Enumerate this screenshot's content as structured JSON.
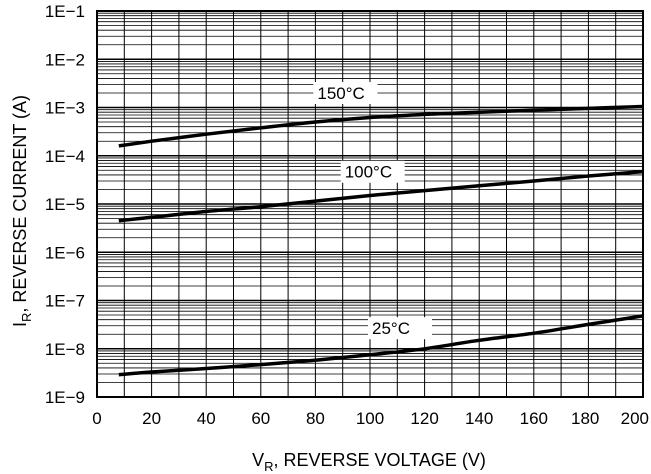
{
  "chart_data": {
    "type": "line",
    "xlabel": "V",
    "xlabel_sub": "R",
    "xlabel_rest": ", REVERSE VOLTAGE (V)",
    "ylabel": "I",
    "ylabel_sub": "R",
    "ylabel_rest": ", REVERSE CURRENT (A)",
    "xlim": [
      0,
      200
    ],
    "ylim": [
      1e-09,
      0.1
    ],
    "yscale": "log",
    "grid": true,
    "x_ticks": [
      0,
      20,
      40,
      60,
      80,
      100,
      120,
      140,
      160,
      180,
      200
    ],
    "x_tick_labels": [
      "0",
      "20",
      "40",
      "60",
      "80",
      "100",
      "120",
      "140",
      "160",
      "180",
      "200"
    ],
    "y_ticks": [
      1e-09,
      1e-08,
      1e-07,
      1e-06,
      1e-05,
      0.0001,
      0.001,
      0.01,
      0.1
    ],
    "y_tick_labels": [
      "1E−9",
      "1E−8",
      "1E−7",
      "1E−6",
      "1E−5",
      "1E−4",
      "1E−3",
      "1E−2",
      "1E−1"
    ],
    "series": [
      {
        "name": "150°C",
        "label_at": [
          80,
          0.0015
        ],
        "x": [
          8,
          20,
          40,
          60,
          80,
          100,
          120,
          140,
          160,
          180,
          200
        ],
        "y": [
          0.00016,
          0.0002,
          0.00028,
          0.00038,
          0.0005,
          0.00062,
          0.00072,
          0.0008,
          0.00088,
          0.00096,
          0.00105
        ]
      },
      {
        "name": "100°C",
        "label_at": [
          90,
          3.5e-05
        ],
        "x": [
          8,
          20,
          40,
          60,
          80,
          100,
          120,
          140,
          160,
          180,
          200
        ],
        "y": [
          4.5e-06,
          5.3e-06,
          7e-06,
          8.8e-06,
          1.15e-05,
          1.5e-05,
          1.9e-05,
          2.4e-05,
          3e-05,
          3.8e-05,
          4.7e-05
        ]
      },
      {
        "name": "25°C",
        "label_at": [
          100,
          2e-08
        ],
        "x": [
          8,
          20,
          40,
          60,
          80,
          100,
          120,
          140,
          160,
          180,
          200
        ],
        "y": [
          2.9e-09,
          3.3e-09,
          3.9e-09,
          4.7e-09,
          5.8e-09,
          7.5e-09,
          1e-08,
          1.5e-08,
          2.1e-08,
          3.2e-08,
          4.8e-08
        ]
      }
    ]
  }
}
